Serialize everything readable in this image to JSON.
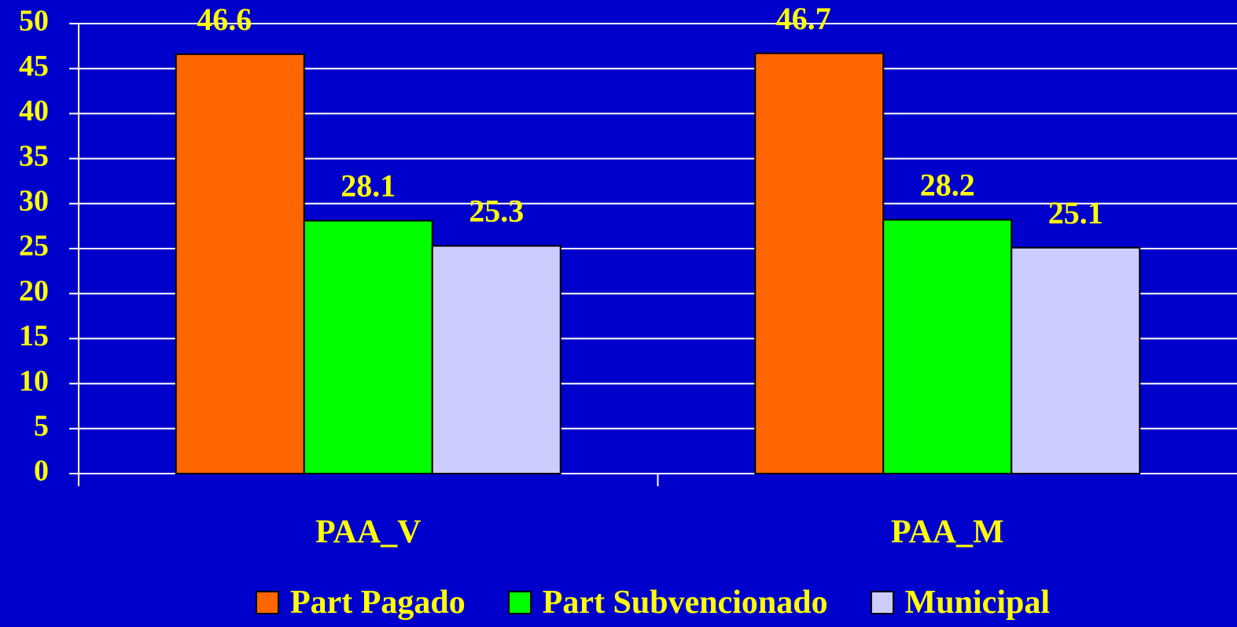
{
  "chart_data": {
    "type": "bar",
    "categories": [
      "PAA_V",
      "PAA_M"
    ],
    "series": [
      {
        "name": "Part Pagado",
        "color": "#ff6600",
        "values": [
          46.6,
          46.7
        ]
      },
      {
        "name": "Part Subvencionado",
        "color": "#00ff00",
        "values": [
          28.1,
          28.2
        ]
      },
      {
        "name": "Municipal",
        "color": "#ccccff",
        "values": [
          25.3,
          25.1
        ]
      }
    ],
    "ylim": [
      0,
      50
    ],
    "yticks": [
      0,
      5,
      10,
      15,
      20,
      25,
      30,
      35,
      40,
      45,
      50
    ],
    "grid": true,
    "legend": "bottom"
  }
}
